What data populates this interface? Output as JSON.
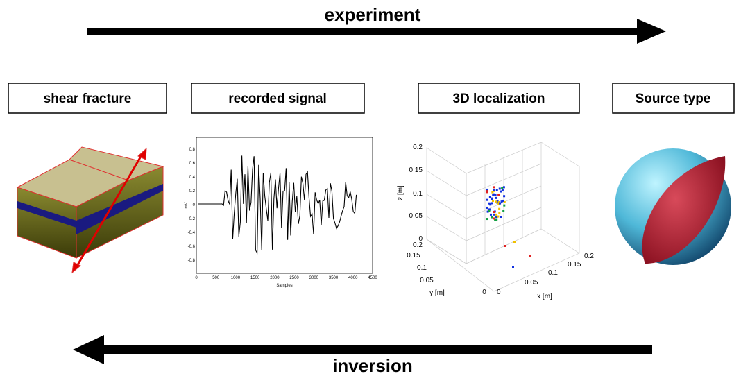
{
  "flow": {
    "top_arrow": "experiment",
    "bottom_arrow": "inversion"
  },
  "panels": [
    {
      "label": "shear fracture"
    },
    {
      "label": "recorded signal"
    },
    {
      "label": "3D localization"
    },
    {
      "label": "Source type"
    }
  ],
  "signal_plot": {
    "x_label": "Samples",
    "y_label": "mV",
    "x_ticks": [
      "0",
      "500",
      "1000",
      "1500",
      "2000",
      "2500",
      "3000",
      "3500",
      "4000",
      "4500"
    ],
    "y_ticks": [
      "0.8",
      "0.6",
      "0.4",
      "0.2",
      "0",
      "-0.2",
      "-0.4",
      "-0.6",
      "-0.8"
    ]
  },
  "localization_plot": {
    "x_label": "x [m]",
    "y_label": "y [m]",
    "z_label": "z [m]",
    "x_ticks": [
      "0",
      "0.05",
      "0.1",
      "0.15",
      "0.2"
    ],
    "y_ticks": [
      "0.2",
      "0.15",
      "0.1",
      "0.05",
      "0"
    ],
    "z_ticks": [
      "0.2",
      "0.15",
      "0.1",
      "0.05",
      "0"
    ]
  }
}
